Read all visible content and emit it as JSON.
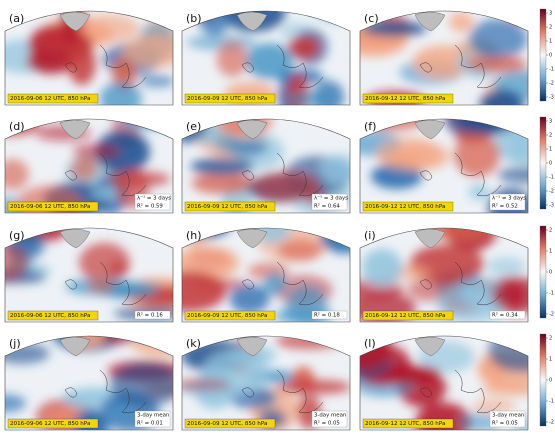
{
  "panels": [
    {
      "label": "(a)",
      "timestamp": "2016-09-06 12 UTC, 850 hPa",
      "annotations": []
    },
    {
      "label": "(b)",
      "timestamp": "2016-09-09 12 UTC, 850 hPa",
      "annotations": []
    },
    {
      "label": "(c)",
      "timestamp": "2016-09-12 12 UTC, 850 hPa",
      "annotations": []
    },
    {
      "label": "(d)",
      "timestamp": "2016-09-06 12 UTC, 850 hPa",
      "annotations": [
        "λ⁻¹ = 3 days",
        "R² = 0.59"
      ]
    },
    {
      "label": "(e)",
      "timestamp": "2016-09-09 12 UTC, 850 hPa",
      "annotations": [
        "λ⁻¹ = 3 days",
        "R² = 0.64"
      ]
    },
    {
      "label": "(f)",
      "timestamp": "2016-09-12 12 UTC, 850 hPa",
      "annotations": [
        "λ⁻¹ = 3 days",
        "R² = 0.52"
      ]
    },
    {
      "label": "(g)",
      "timestamp": "2016-09-06 12 UTC, 850 hPa",
      "annotations": [
        "R² = 0.16"
      ]
    },
    {
      "label": "(h)",
      "timestamp": "2016-09-09 12 UTC, 850 hPa",
      "annotations": [
        "R² = 0.18"
      ]
    },
    {
      "label": "(i)",
      "timestamp": "2016-09-12 12 UTC, 850 hPa",
      "annotations": [
        "R² = 0.34"
      ]
    },
    {
      "label": "(j)",
      "timestamp": "2016-09-06 12 UTC, 850 hPa",
      "annotations": [
        "3-day mean",
        "R² = 0.01"
      ]
    },
    {
      "label": "(k)",
      "timestamp": "2016-09-09 12 UTC, 850 hPa",
      "annotations": [
        "3-day mean",
        "R² = 0.05"
      ]
    },
    {
      "label": "(l)",
      "timestamp": "2016-09-12 12 UTC, 850 hPa",
      "annotations": [
        "3-day mean",
        "R² = 0.05"
      ]
    }
  ],
  "colorbars": [
    {
      "ticks": [
        3,
        2,
        1,
        0,
        -1,
        -2,
        -3
      ]
    },
    {
      "ticks": [
        3,
        2,
        1,
        0,
        -1,
        -2,
        -3
      ]
    },
    {
      "ticks": [
        2,
        1,
        0,
        -1,
        -2
      ]
    },
    {
      "ticks": [
        2,
        1,
        0,
        -1,
        -2
      ]
    }
  ]
}
